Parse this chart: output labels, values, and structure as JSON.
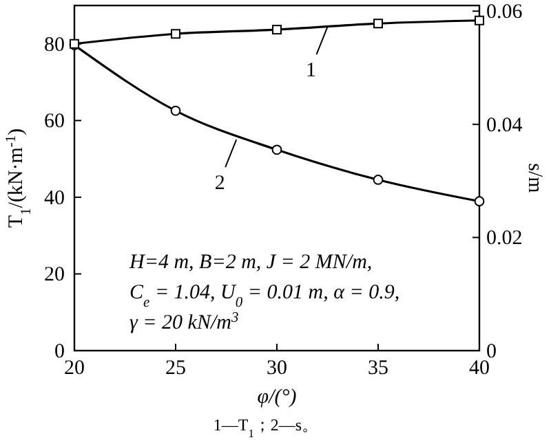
{
  "chart_data": {
    "type": "line",
    "xlabel": "φ/(°)",
    "ylabel": "T$_{1}$/(kN·m$^{-1}$)",
    "y2label": "s/m",
    "x": [
      20,
      25,
      30,
      35,
      40
    ],
    "series": [
      {
        "color": "#000000",
        "marker": "square",
        "values": [
          80,
          82.6,
          83.7,
          85.3,
          86.1
        ]
      },
      {
        "color": "#000000",
        "marker": "circle",
        "axis": "y2",
        "values": [
          0.054,
          0.0424,
          0.0355,
          0.0302,
          0.0264
        ]
      }
    ],
    "xlim": [
      20,
      40
    ],
    "xticks": [
      20,
      25,
      30,
      35,
      40
    ],
    "ylim": [
      0,
      90
    ],
    "yticks": [
      0,
      20,
      40,
      60,
      80
    ],
    "y2lim": [
      0,
      0.061
    ],
    "y2ticks": [
      0,
      0.02,
      0.04,
      0.06
    ],
    "annotations": [
      {
        "text": "1",
        "x": 32.5,
        "y": 84.4
      },
      {
        "text": "2",
        "x": 28,
        "y": 55
      },
      "H=4 m, B=2 m, J = 2 MN/m,",
      "C$_{e}$ = 1.04, U$_{0}$ = 0.01 m, α = 0.9,",
      "γ = 20 kN/m$^{3}$",
      "1—T$_{1}$；2—s。"
    ],
    "grid": false
  }
}
